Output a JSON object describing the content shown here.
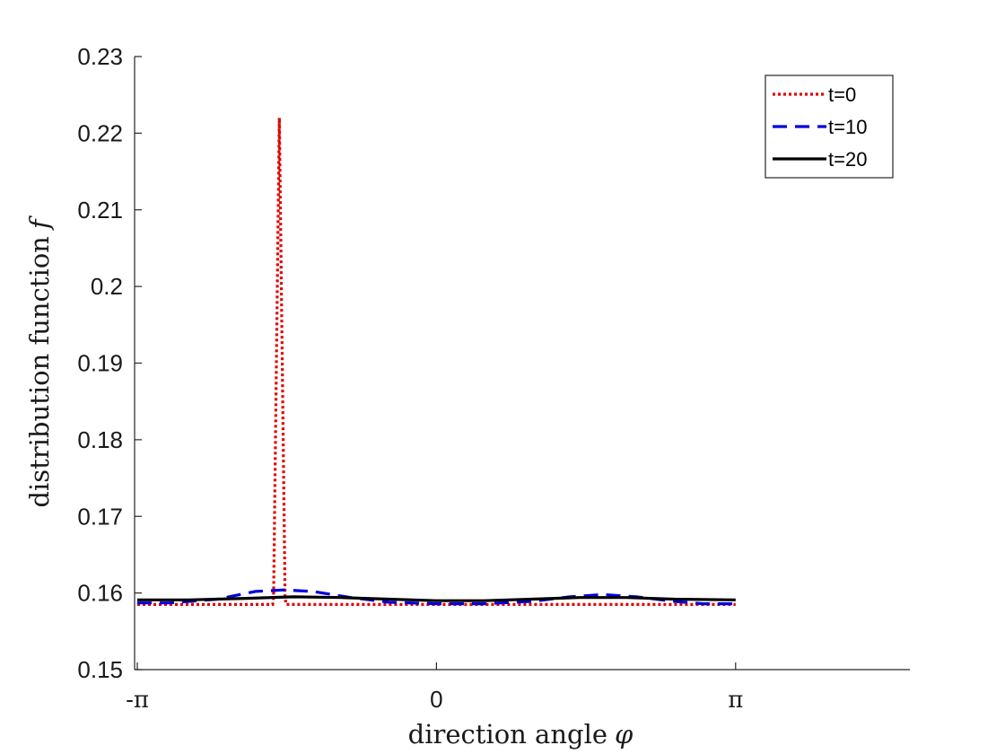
{
  "chart_data": {
    "type": "line",
    "title": "",
    "xlabel": "direction angle",
    "xlabel_symbol": "φ",
    "ylabel": "distribution function",
    "ylabel_symbol": "f",
    "xlim": [
      -3.1416,
      3.1416
    ],
    "xlim_display_max": 5.0,
    "ylim": [
      0.15,
      0.23
    ],
    "yticks": [
      0.15,
      0.16,
      0.17,
      0.18,
      0.19,
      0.2,
      0.21,
      0.22,
      0.23
    ],
    "ytick_labels": [
      "0.15",
      "0.16",
      "0.17",
      "0.18",
      "0.19",
      "0.2",
      "0.21",
      "0.22",
      "0.23"
    ],
    "xticks": [
      -3.1416,
      0,
      3.1416
    ],
    "xtick_labels": [
      "-π",
      "0",
      "π"
    ],
    "grid": false,
    "legend_position": "top-right",
    "series": [
      {
        "name": "t=0",
        "color": "#e00000",
        "dash": "dotted",
        "x": [
          -3.1416,
          -1.72,
          -1.71,
          -1.65,
          -1.59,
          -1.58,
          3.1416
        ],
        "y": [
          0.1585,
          0.1585,
          0.1595,
          0.222,
          0.1595,
          0.1585,
          0.1585
        ]
      },
      {
        "name": "t=10",
        "color": "#0000dd",
        "dash": "dashed",
        "x": [
          -3.1416,
          -2.8,
          -2.3,
          -1.9,
          -1.6,
          -1.3,
          -0.9,
          -0.5,
          0,
          0.5,
          1.0,
          1.4,
          1.75,
          2.1,
          2.5,
          2.8,
          3.1416
        ],
        "y": [
          0.1587,
          0.1587,
          0.1592,
          0.1602,
          0.1604,
          0.1602,
          0.1594,
          0.1588,
          0.1586,
          0.1586,
          0.1589,
          0.1595,
          0.1598,
          0.1595,
          0.1589,
          0.1586,
          0.1586
        ]
      },
      {
        "name": "t=20",
        "color": "#000000",
        "dash": "solid",
        "x": [
          -3.1416,
          -2.6,
          -2.0,
          -1.5,
          -1.0,
          -0.5,
          0,
          0.5,
          1.0,
          1.5,
          2.0,
          2.5,
          3.1416
        ],
        "y": [
          0.1591,
          0.1591,
          0.1593,
          0.1595,
          0.1594,
          0.1592,
          0.159,
          0.159,
          0.1592,
          0.1594,
          0.1594,
          0.1592,
          0.1591
        ]
      }
    ]
  }
}
